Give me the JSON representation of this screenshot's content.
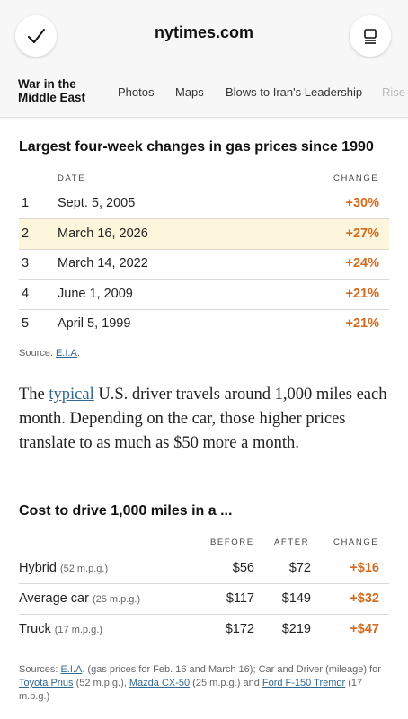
{
  "browser": {
    "domain": "nytimes.com",
    "left_icon": "checkmark-icon",
    "right_icon": "reader-mode-icon"
  },
  "nav": {
    "section_line1": "War in the",
    "section_line2": "Middle East",
    "items": [
      "Photos",
      "Maps",
      "Blows to Iran's Leadership",
      "Rise"
    ]
  },
  "table1": {
    "title": "Largest four-week changes in gas prices since 1990",
    "headers": {
      "date": "DATE",
      "change": "CHANGE"
    },
    "rows": [
      {
        "rank": "1",
        "date": "Sept. 5, 2005",
        "change": "+30%"
      },
      {
        "rank": "2",
        "date": "March 16, 2026",
        "change": "+27%"
      },
      {
        "rank": "3",
        "date": "March 14, 2022",
        "change": "+24%"
      },
      {
        "rank": "4",
        "date": "June 1, 2009",
        "change": "+21%"
      },
      {
        "rank": "5",
        "date": "April 5, 1999",
        "change": "+21%"
      }
    ],
    "source_prefix": "Source: ",
    "source_link": "E.I.A",
    "source_suffix": "."
  },
  "paragraph": {
    "before": "The ",
    "link": "typical",
    "after": " U.S. driver travels around 1,000 miles each month. Depending on the car, those higher prices translate to as much as $50 more a month."
  },
  "table2": {
    "title": "Cost to drive 1,000 miles in a ...",
    "headers": {
      "before": "BEFORE",
      "after": "AFTER",
      "change": "CHANGE"
    },
    "rows": [
      {
        "name": "Hybrid",
        "mpg": "(52 m.p.g.)",
        "before": "$56",
        "after": "$72",
        "change": "+$16"
      },
      {
        "name": "Average car",
        "mpg": "(25 m.p.g.)",
        "before": "$117",
        "after": "$149",
        "change": "+$32"
      },
      {
        "name": "Truck",
        "mpg": "(17 m.p.g.)",
        "before": "$172",
        "after": "$219",
        "change": "+$47"
      }
    ],
    "sources": {
      "prefix": "Sources: ",
      "eia": "E.I.A",
      "text1": ". (gas prices for Feb. 16 and March 16); Car and Driver (mileage) for ",
      "car1": "Toyota Prius",
      "text2": " (52 m.p.g.), ",
      "car2": "Mazda CX-50",
      "text3": " (25 m.p.g.) and ",
      "car3": "Ford F-150 Tremor",
      "text4": " (17 m.p.g.)"
    }
  },
  "colors": {
    "accent_change": "#d46a1e",
    "link": "#326891",
    "highlight_row": "#fdf6dc"
  }
}
